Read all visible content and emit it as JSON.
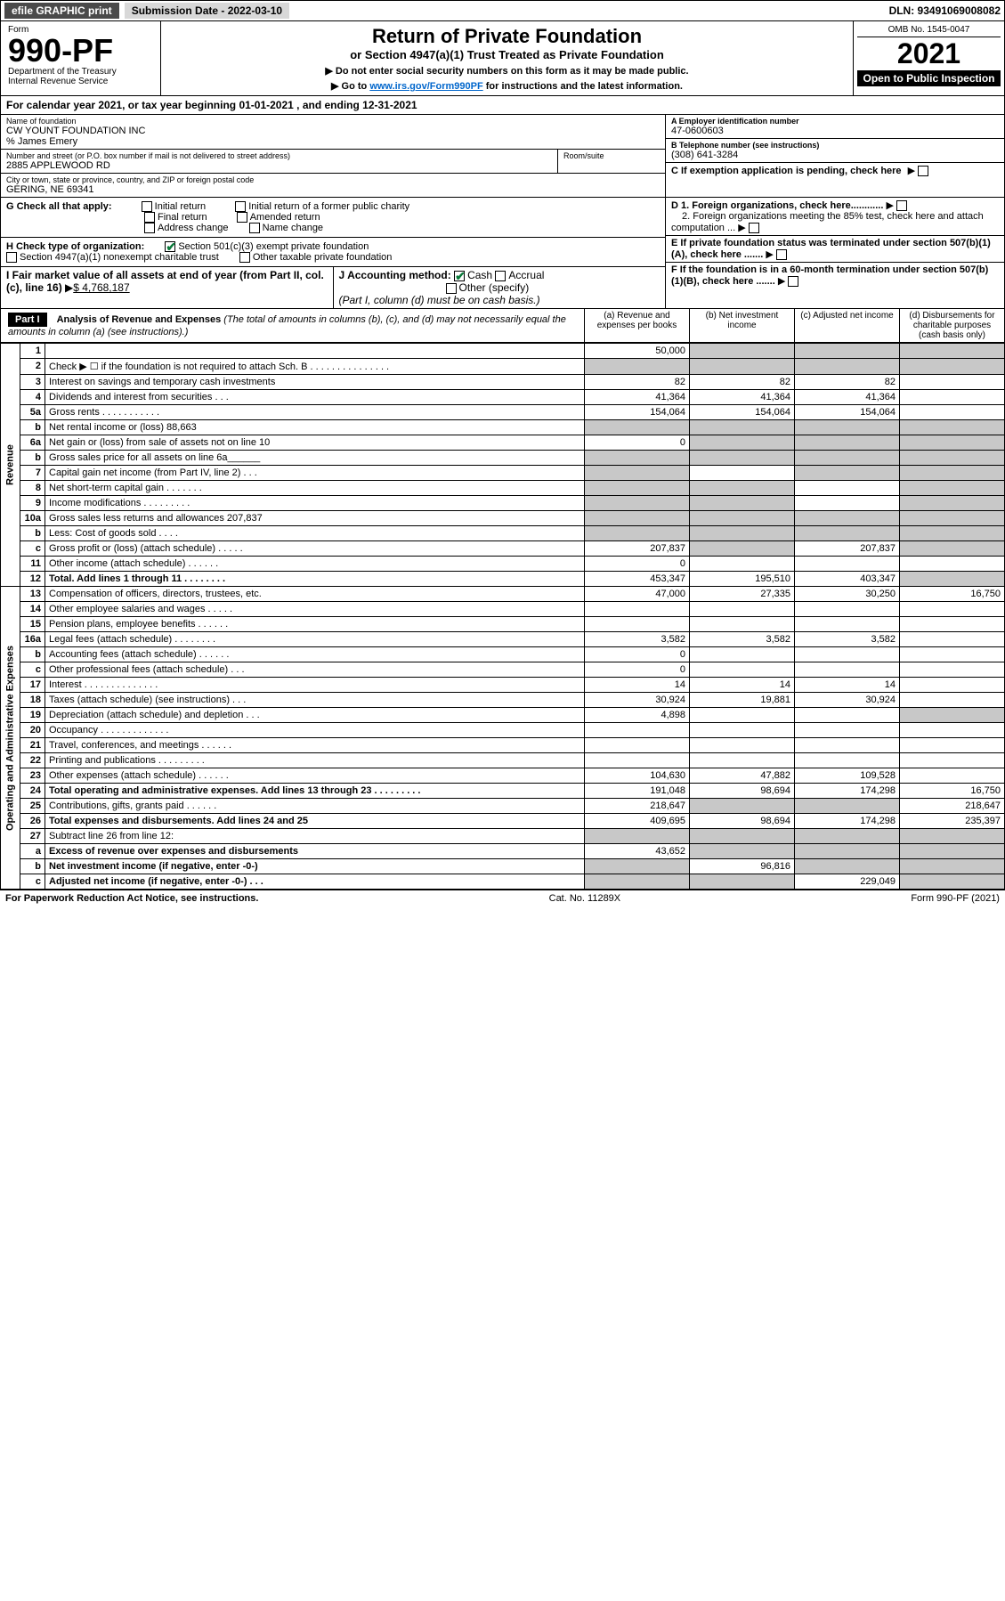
{
  "topbar": {
    "efile": "efile GRAPHIC print",
    "submission": "Submission Date - 2022-03-10",
    "dln": "DLN: 93491069008082"
  },
  "header": {
    "form": "Form",
    "form_no": "990-PF",
    "dept": "Department of the Treasury",
    "irs": "Internal Revenue Service",
    "title": "Return of Private Foundation",
    "subtitle": "or Section 4947(a)(1) Trust Treated as Private Foundation",
    "note1": "▶ Do not enter social security numbers on this form as it may be made public.",
    "note2_pre": "▶ Go to ",
    "note2_link": "www.irs.gov/Form990PF",
    "note2_post": " for instructions and the latest information.",
    "omb": "OMB No. 1545-0047",
    "year": "2021",
    "open": "Open to Public Inspection"
  },
  "cal": "For calendar year 2021, or tax year beginning 01-01-2021           , and ending 12-31-2021",
  "entity": {
    "name_lbl": "Name of foundation",
    "name": "CW YOUNT FOUNDATION INC",
    "care_of": "% James Emery",
    "addr_lbl": "Number and street (or P.O. box number if mail is not delivered to street address)",
    "addr": "2885 APPLEWOOD RD",
    "room_lbl": "Room/suite",
    "city_lbl": "City or town, state or province, country, and ZIP or foreign postal code",
    "city": "GERING, NE  69341",
    "a_lbl": "A Employer identification number",
    "a": "47-0600603",
    "b_lbl": "B Telephone number (see instructions)",
    "b": "(308) 641-3284",
    "c": "C If exemption application is pending, check here",
    "d1": "D 1. Foreign organizations, check here............",
    "d2": "2. Foreign organizations meeting the 85% test, check here and attach computation ...",
    "e": "E  If private foundation status was terminated under section 507(b)(1)(A), check here .......",
    "f": "F  If the foundation is in a 60-month termination under section 507(b)(1)(B), check here ......."
  },
  "g": {
    "lbl": "G Check all that apply:",
    "initial": "Initial return",
    "initial_former": "Initial return of a former public charity",
    "final": "Final return",
    "amended": "Amended return",
    "addr_change": "Address change",
    "name_change": "Name change"
  },
  "h": {
    "lbl": "H Check type of organization:",
    "s501": "Section 501(c)(3) exempt private foundation",
    "s4947": "Section 4947(a)(1) nonexempt charitable trust",
    "other_tax": "Other taxable private foundation"
  },
  "i": {
    "lbl": "I Fair market value of all assets at end of year (from Part II, col. (c), line 16)",
    "val": "$  4,768,187"
  },
  "j": {
    "lbl": "J Accounting method:",
    "cash": "Cash",
    "accrual": "Accrual",
    "other": "Other (specify)",
    "note": "(Part I, column (d) must be on cash basis.)"
  },
  "part1": {
    "title": "Part I",
    "heading": "Analysis of Revenue and Expenses",
    "sub": "(The total of amounts in columns (b), (c), and (d) may not necessarily equal the amounts in column (a) (see instructions).)",
    "cols": {
      "a": "(a)   Revenue and expenses per books",
      "b": "(b)   Net investment income",
      "c": "(c)   Adjusted net income",
      "d": "(d)   Disbursements for charitable purposes (cash basis only)"
    }
  },
  "revenue_label": "Revenue",
  "expenses_label": "Operating and Administrative Expenses",
  "rows": [
    {
      "n": "1",
      "d": "",
      "a": "50,000",
      "b": "",
      "c": "",
      "shade": [
        "b",
        "c",
        "d"
      ]
    },
    {
      "n": "2",
      "d": "Check ▶ ☐ if the foundation is not required to attach Sch. B   .  .  .  .  .  .  .  .  .  .  .  .  .  .  .",
      "shade": [
        "a",
        "b",
        "c",
        "d"
      ]
    },
    {
      "n": "3",
      "d": "Interest on savings and temporary cash investments",
      "a": "82",
      "b": "82",
      "c": "82"
    },
    {
      "n": "4",
      "d": "Dividends and interest from securities   .  .  .",
      "a": "41,364",
      "b": "41,364",
      "c": "41,364"
    },
    {
      "n": "5a",
      "d": "Gross rents   .  .  .  .  .  .  .  .  .  .  .",
      "a": "154,064",
      "b": "154,064",
      "c": "154,064"
    },
    {
      "n": "b",
      "d": "Net rental income or (loss)                                  88,663",
      "shade": [
        "a",
        "b",
        "c",
        "d"
      ]
    },
    {
      "n": "6a",
      "d": "Net gain or (loss) from sale of assets not on line 10",
      "a": "0",
      "shade": [
        "b",
        "c",
        "d"
      ]
    },
    {
      "n": "b",
      "d": "Gross sales price for all assets on line 6a______",
      "shade": [
        "a",
        "b",
        "c",
        "d"
      ]
    },
    {
      "n": "7",
      "d": "Capital gain net income (from Part IV, line 2)  .  .  .",
      "shade": [
        "a",
        "c",
        "d"
      ]
    },
    {
      "n": "8",
      "d": "Net short-term capital gain  .  .  .  .  .  .  .",
      "shade": [
        "a",
        "b",
        "d"
      ]
    },
    {
      "n": "9",
      "d": "Income modifications  .  .  .  .  .  .  .  .  .",
      "shade": [
        "a",
        "b",
        "d"
      ]
    },
    {
      "n": "10a",
      "d": "Gross sales less returns and allowances          207,837",
      "shade": [
        "a",
        "b",
        "c",
        "d"
      ]
    },
    {
      "n": "b",
      "d": "Less: Cost of goods sold   .  .  .  .",
      "shade": [
        "a",
        "b",
        "c",
        "d"
      ]
    },
    {
      "n": "c",
      "d": "Gross profit or (loss) (attach schedule)   .  .  .  .  .",
      "a": "207,837",
      "c": "207,837",
      "shade": [
        "b",
        "d"
      ]
    },
    {
      "n": "11",
      "d": "Other income (attach schedule)   .  .  .  .  .  .",
      "a": "0"
    },
    {
      "n": "12",
      "d": "Total. Add lines 1 through 11  .  .  .  .  .  .  .  .",
      "a": "453,347",
      "b": "195,510",
      "c": "403,347",
      "bold": true,
      "shade": [
        "d"
      ]
    },
    {
      "n": "13",
      "d": "Compensation of officers, directors, trustees, etc.",
      "a": "47,000",
      "b": "27,335",
      "c": "30,250",
      "dd": "16,750"
    },
    {
      "n": "14",
      "d": "Other employee salaries and wages  .  .  .  .  ."
    },
    {
      "n": "15",
      "d": "Pension plans, employee benefits  .  .  .  .  .  ."
    },
    {
      "n": "16a",
      "d": "Legal fees (attach schedule)  .  .  .  .  .  .  .  .",
      "a": "3,582",
      "b": "3,582",
      "c": "3,582"
    },
    {
      "n": "b",
      "d": "Accounting fees (attach schedule)  .  .  .  .  .  .",
      "a": "0"
    },
    {
      "n": "c",
      "d": "Other professional fees (attach schedule)   .  .  .",
      "a": "0"
    },
    {
      "n": "17",
      "d": "Interest  .  .  .  .  .  .  .  .  .  .  .  .  .  .",
      "a": "14",
      "b": "14",
      "c": "14"
    },
    {
      "n": "18",
      "d": "Taxes (attach schedule) (see instructions)   .  .  .",
      "a": "30,924",
      "b": "19,881",
      "c": "30,924"
    },
    {
      "n": "19",
      "d": "Depreciation (attach schedule) and depletion  .  .  .",
      "a": "4,898",
      "shade": [
        "d"
      ]
    },
    {
      "n": "20",
      "d": "Occupancy  .  .  .  .  .  .  .  .  .  .  .  .  ."
    },
    {
      "n": "21",
      "d": "Travel, conferences, and meetings  .  .  .  .  .  ."
    },
    {
      "n": "22",
      "d": "Printing and publications  .  .  .  .  .  .  .  .  ."
    },
    {
      "n": "23",
      "d": "Other expenses (attach schedule)  .  .  .  .  .  .",
      "a": "104,630",
      "b": "47,882",
      "c": "109,528"
    },
    {
      "n": "24",
      "d": "Total operating and administrative expenses. Add lines 13 through 23  .  .  .  .  .  .  .  .  .",
      "a": "191,048",
      "b": "98,694",
      "c": "174,298",
      "dd": "16,750",
      "bold": true
    },
    {
      "n": "25",
      "d": "Contributions, gifts, grants paid   .  .  .  .  .  .",
      "a": "218,647",
      "dd": "218,647",
      "shade": [
        "b",
        "c"
      ]
    },
    {
      "n": "26",
      "d": "Total expenses and disbursements. Add lines 24 and 25",
      "a": "409,695",
      "b": "98,694",
      "c": "174,298",
      "dd": "235,397",
      "bold": true
    },
    {
      "n": "27",
      "d": "Subtract line 26 from line 12:",
      "shade": [
        "a",
        "b",
        "c",
        "d"
      ]
    },
    {
      "n": "a",
      "d": "Excess of revenue over expenses and disbursements",
      "a": "43,652",
      "bold": true,
      "shade": [
        "b",
        "c",
        "d"
      ]
    },
    {
      "n": "b",
      "d": "Net investment income (if negative, enter -0-)",
      "b": "96,816",
      "bold": true,
      "shade": [
        "a",
        "c",
        "d"
      ]
    },
    {
      "n": "c",
      "d": "Adjusted net income (if negative, enter -0-)  .  .  .",
      "c": "229,049",
      "bold": true,
      "shade": [
        "a",
        "b",
        "d"
      ]
    }
  ],
  "footer": {
    "left": "For Paperwork Reduction Act Notice, see instructions.",
    "mid": "Cat. No. 11289X",
    "right": "Form 990-PF (2021)"
  }
}
